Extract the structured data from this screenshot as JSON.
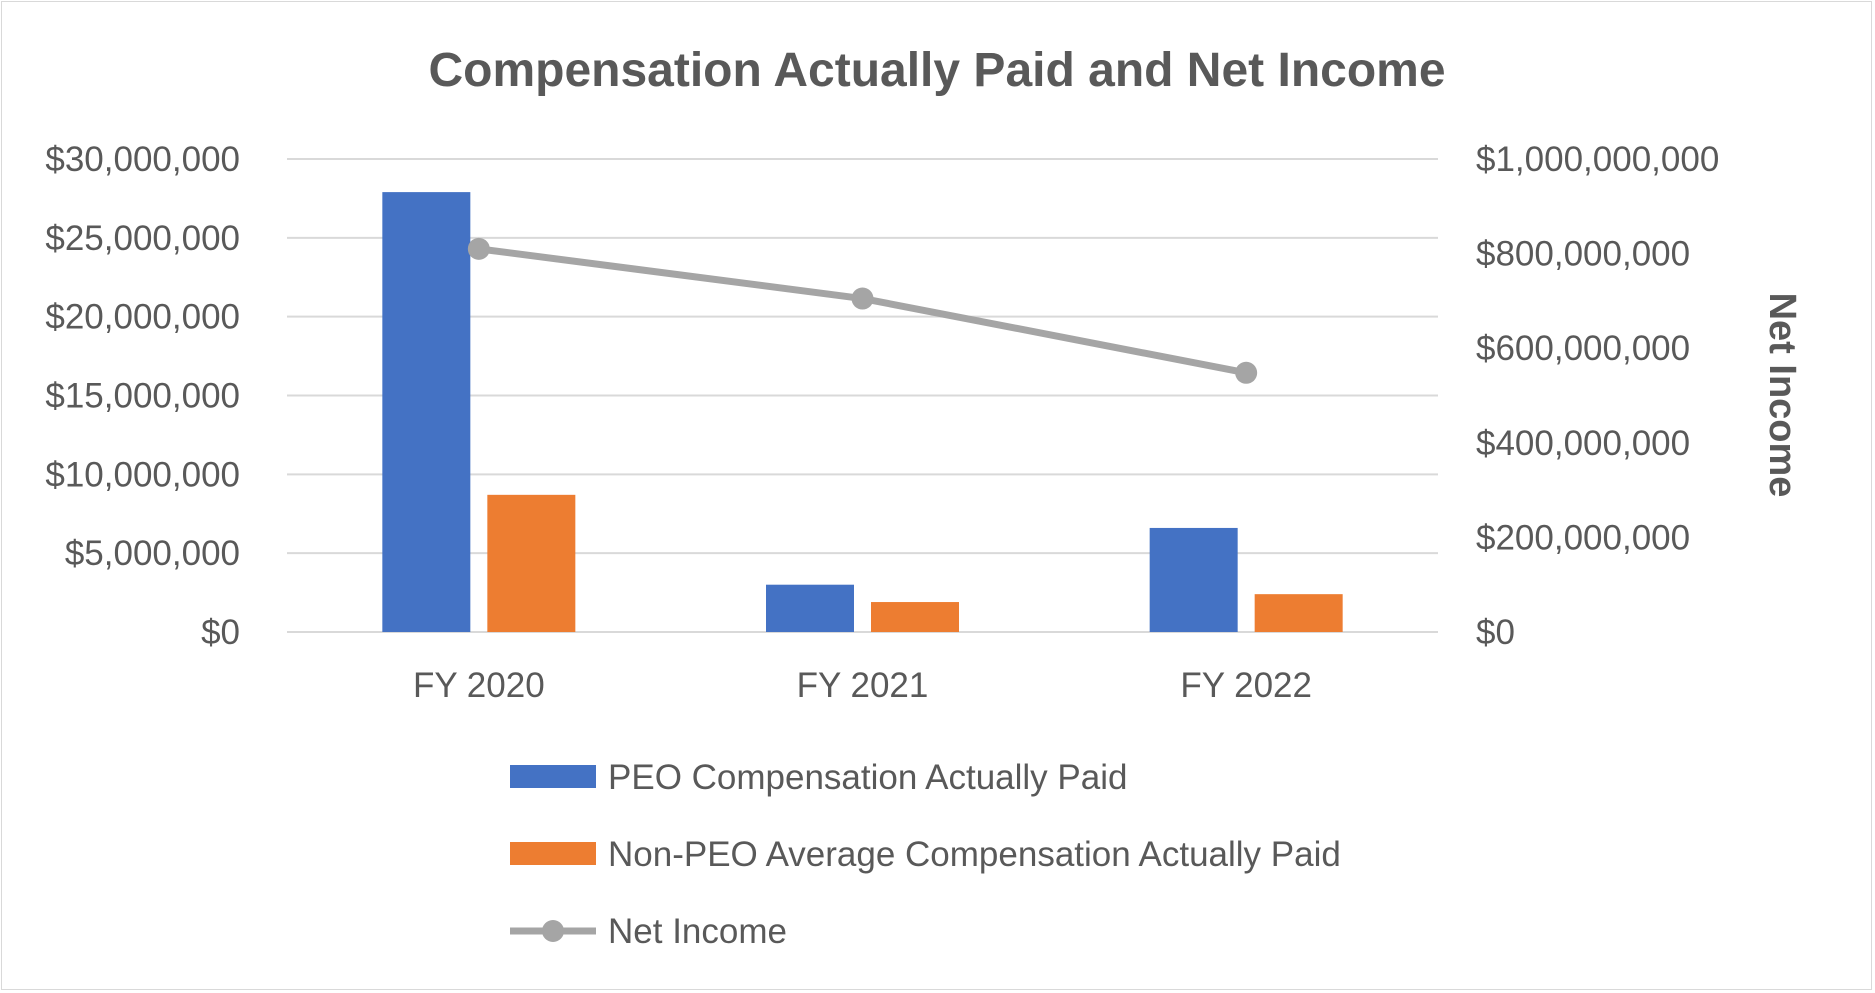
{
  "chart_data": {
    "type": "bar",
    "title": "Compensation Actually Paid and Net Income",
    "categories": [
      "FY 2020",
      "FY 2021",
      "FY 2022"
    ],
    "series": [
      {
        "name": "PEO Compensation Actually Paid",
        "kind": "bar",
        "axis": "left",
        "color": "#4472C4",
        "values": [
          27900000,
          3000000,
          6600000
        ]
      },
      {
        "name": "Non-PEO Average Compensation Actually Paid",
        "kind": "bar",
        "axis": "left",
        "color": "#ED7D31",
        "values": [
          8700000,
          1900000,
          2400000
        ]
      },
      {
        "name": "Net Income",
        "kind": "line",
        "axis": "right",
        "color": "#A5A5A5",
        "values": [
          810000000,
          705000000,
          548000000
        ]
      }
    ],
    "y_left": {
      "label": "",
      "ylim": [
        0,
        30000000
      ],
      "ticks": [
        0,
        5000000,
        10000000,
        15000000,
        20000000,
        25000000,
        30000000
      ],
      "tick_labels": [
        "$0",
        "$5,000,000",
        "$10,000,000",
        "$15,000,000",
        "$20,000,000",
        "$25,000,000",
        "$30,000,000"
      ]
    },
    "y_right": {
      "label": "Net Income",
      "ylim": [
        0,
        1000000000
      ],
      "ticks": [
        0,
        200000000,
        400000000,
        600000000,
        800000000,
        1000000000
      ],
      "tick_labels": [
        "$0",
        "$200,000,000",
        "$400,000,000",
        "$600,000,000",
        "$800,000,000",
        "$1,000,000,000"
      ]
    },
    "grid": true,
    "legend_position": "bottom"
  }
}
